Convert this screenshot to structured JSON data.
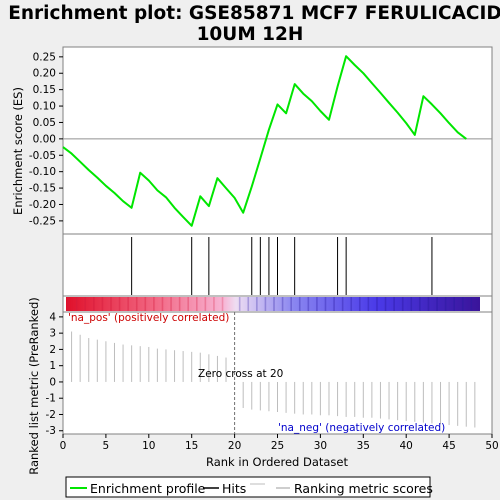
{
  "title_lines": [
    "Enrichment plot: GSE85871 MCF7 FERULICACID",
    "10UM 12H"
  ],
  "es_panel": {
    "ylabel": "Enrichment score (ES)",
    "ylim": [
      -0.29,
      0.28
    ],
    "yticks": [
      -0.25,
      -0.2,
      -0.15,
      -0.1,
      -0.05,
      0.0,
      0.05,
      0.1,
      0.15,
      0.2,
      0.25
    ],
    "ytick_labels": [
      "-0.25",
      "-0.20",
      "-0.15",
      "-0.10",
      "-0.05",
      "0.00",
      "0.05",
      "0.10",
      "0.15",
      "0.20",
      "0.25"
    ]
  },
  "rank_panel": {
    "ylabel": "Ranked list metric (PreRanked)",
    "xlabel": "Rank in Ordered Dataset",
    "ylim": [
      -3.2,
      4.3
    ],
    "yticks": [
      -3,
      -2,
      -1,
      0,
      1,
      2,
      3,
      4
    ],
    "ytick_labels": [
      "-3",
      "-2",
      "-1",
      "0",
      "1",
      "2",
      "3",
      "4"
    ],
    "xlim": [
      0,
      50
    ],
    "xticks": [
      0,
      5,
      10,
      15,
      20,
      25,
      30,
      35,
      40,
      45,
      50
    ],
    "xtick_labels": [
      "0",
      "5",
      "10",
      "15",
      "20",
      "25",
      "30",
      "35",
      "40",
      "45",
      "50"
    ],
    "pos_label": "'na_pos' (positively correlated)",
    "neg_label": "'na_neg' (negatively correlated)",
    "zero_cross_label": "Zero cross at 20",
    "zero_cross": 20
  },
  "legend": {
    "items": [
      "Enrichment profile",
      "Hits",
      "Ranking metric scores"
    ]
  },
  "colors": {
    "es_line": "#00e600",
    "hit": "#000000",
    "metric_bar": "#bdbdbd",
    "pos_label": "#cc0000",
    "neg_label": "#0000cc",
    "background": "#efefef",
    "panel": "#ffffff"
  },
  "chart_data": {
    "type": "line",
    "title": "Enrichment plot: GSE85871 MCF7 FERULICACID 10UM 12H",
    "xlabel": "Rank in Ordered Dataset",
    "series": [
      {
        "name": "Enrichment profile",
        "x": [
          0,
          1,
          2,
          3,
          4,
          5,
          6,
          7,
          8,
          9,
          10,
          11,
          12,
          13,
          14,
          15,
          16,
          17,
          18,
          19,
          20,
          21,
          22,
          23,
          24,
          25,
          26,
          27,
          28,
          29,
          30,
          31,
          32,
          33,
          34,
          35,
          36,
          37,
          38,
          39,
          40,
          41,
          42,
          43,
          44,
          45,
          46,
          47,
          48
        ],
        "y": [
          -0.025,
          -0.045,
          -0.07,
          -0.095,
          -0.118,
          -0.143,
          -0.165,
          -0.19,
          -0.21,
          -0.103,
          -0.127,
          -0.157,
          -0.178,
          -0.21,
          -0.238,
          -0.265,
          -0.175,
          -0.205,
          -0.12,
          -0.15,
          -0.18,
          -0.225,
          -0.145,
          -0.06,
          0.028,
          0.105,
          0.078,
          0.167,
          0.138,
          0.115,
          0.085,
          0.058,
          0.16,
          0.252,
          0.225,
          0.2,
          0.17,
          0.14,
          0.11,
          0.08,
          0.048,
          0.012,
          0.13,
          0.105,
          0.078,
          0.048,
          0.02,
          0.0,
          null
        ]
      }
    ],
    "hits": [
      8,
      15,
      17,
      22,
      23,
      24,
      25,
      27,
      32,
      33,
      43
    ],
    "ranking_metric": {
      "x": [
        1,
        2,
        3,
        4,
        5,
        6,
        7,
        8,
        9,
        10,
        11,
        12,
        13,
        14,
        15,
        16,
        17,
        18,
        19,
        20,
        21,
        22,
        23,
        24,
        25,
        26,
        27,
        28,
        29,
        30,
        31,
        32,
        33,
        34,
        35,
        36,
        37,
        38,
        39,
        40,
        41,
        42,
        43,
        44,
        45,
        46,
        47,
        48
      ],
      "values": [
        3.1,
        2.9,
        2.7,
        2.6,
        2.5,
        2.4,
        2.3,
        2.25,
        2.2,
        2.15,
        2.05,
        2.0,
        1.95,
        1.9,
        1.85,
        1.8,
        1.7,
        1.6,
        1.5,
        0.02,
        -1.6,
        -1.7,
        -1.75,
        -1.8,
        -1.85,
        -1.9,
        -1.95,
        -2.0,
        -2.0,
        -2.05,
        -2.05,
        -2.1,
        -2.15,
        -2.15,
        -2.2,
        -2.2,
        -2.25,
        -2.3,
        -2.35,
        -2.4,
        -2.45,
        -2.5,
        -2.55,
        -2.6,
        -2.65,
        -2.7,
        -2.75,
        -2.8
      ]
    }
  }
}
